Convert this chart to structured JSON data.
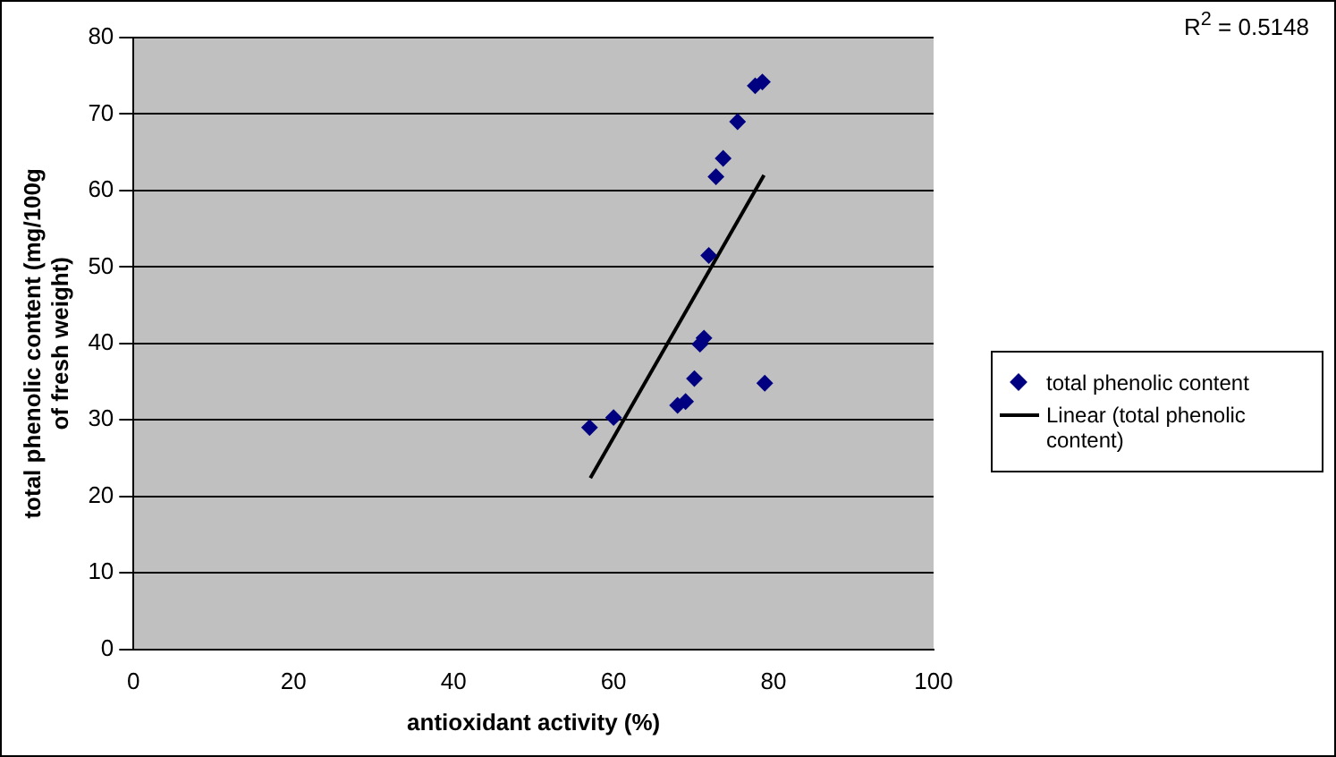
{
  "chart_data": {
    "type": "scatter",
    "xlabel": "antioxidant activity (%)",
    "ylabel": "total phenolic content (mg/100g of fresh weight)",
    "xlim": [
      0,
      100
    ],
    "xticks": [
      0,
      20,
      40,
      60,
      80,
      100
    ],
    "ylim": [
      0,
      80
    ],
    "yticks": [
      0,
      10,
      20,
      30,
      40,
      50,
      60,
      70,
      80
    ],
    "grid": "y",
    "legend": "right",
    "annotations": [
      "R$^{2}$ = 0.5148"
    ],
    "series": [
      {
        "name": "total phenolic content",
        "type": "scatter",
        "marker": "diamond",
        "color": "#000080",
        "x": [
          57,
          60,
          68,
          69,
          70.1,
          70.8,
          71.3,
          78.9,
          71.9,
          72.8,
          73.7,
          75.5,
          77.7,
          78.6
        ],
        "values": [
          29,
          30.3,
          31.9,
          32.4,
          35.4,
          39.9,
          40.7,
          34.8,
          51.5,
          61.8,
          64.2,
          69,
          73.7,
          74.2
        ]
      },
      {
        "name": "Linear (total phenolic content)",
        "type": "line",
        "marker": "none",
        "color": "#000000",
        "x": [
          57.1,
          78.8
        ],
        "values": [
          22.4,
          62.0
        ]
      }
    ]
  }
}
